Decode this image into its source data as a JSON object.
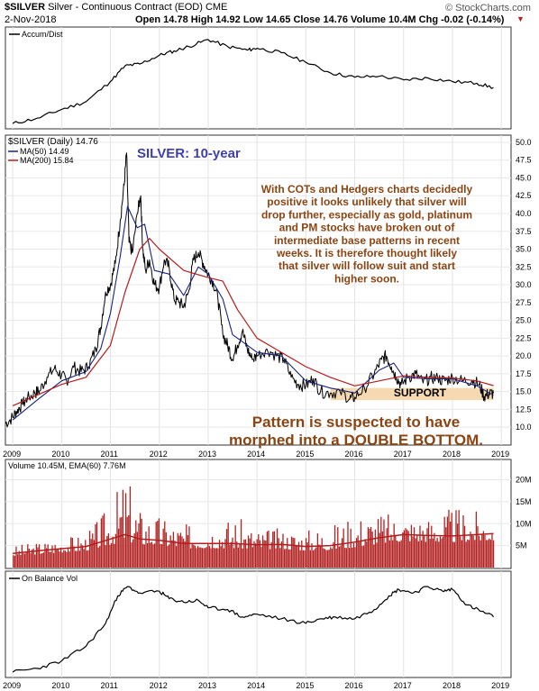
{
  "header": {
    "symbol": "$SILVER",
    "description": "Silver - Continuous Contract (EOD)",
    "exchange": "CME",
    "date": "2-Nov-2018",
    "quote": "Open 14.78  High 14.92  Low 14.65  Close 14.76  Volume 10.4M  Chg -0.02 (-0.14%)",
    "watermark": "© StockCharts.com"
  },
  "colors": {
    "price": "#000000",
    "ma50": "#1a237e",
    "ma200": "#b71c1c",
    "volume": "#b22222",
    "ema": "#b71c1c",
    "support": "#f6d9b0",
    "annotation": "#8b4513",
    "title": "#3f3fb0"
  },
  "chart_data": [
    {
      "type": "line",
      "panel": "Accum/Dist",
      "legend": [
        "Accum/Dist"
      ],
      "x": [
        2009.0,
        2009.5,
        2010.0,
        2010.5,
        2011.0,
        2011.3,
        2011.6,
        2012.0,
        2012.3,
        2012.6,
        2013.0,
        2013.4,
        2013.8,
        2014.0,
        2014.5,
        2015.0,
        2015.5,
        2016.0,
        2016.5,
        2017.0,
        2017.5,
        2018.0,
        2018.5,
        2018.84
      ],
      "y": [
        0.02,
        0.08,
        0.18,
        0.27,
        0.5,
        0.68,
        0.7,
        0.8,
        0.85,
        0.9,
        0.98,
        0.9,
        0.86,
        0.88,
        0.83,
        0.72,
        0.6,
        0.55,
        0.56,
        0.52,
        0.54,
        0.5,
        0.48,
        0.43
      ],
      "ylim": [
        0,
        1
      ]
    },
    {
      "type": "line",
      "panel": "price",
      "title": "SILVER: 10-year",
      "legend": [
        "$SILVER (Daily) 14.76",
        "MA(50) 14.49",
        "MA(200) 15.84"
      ],
      "xlabel": "",
      "ylabel": "",
      "xticks": [
        "2009",
        "2010",
        "2011",
        "2012",
        "2013",
        "2014",
        "2015",
        "2016",
        "2017",
        "2018",
        "2019"
      ],
      "yticks": [
        "10.0",
        "12.5",
        "15.0",
        "17.5",
        "20.0",
        "22.5",
        "25.0",
        "27.5",
        "30.0",
        "32.5",
        "35.0",
        "37.5",
        "40.0",
        "42.5",
        "45.0",
        "47.5",
        "50.0"
      ],
      "ylim": [
        8.5,
        50.5
      ],
      "series": [
        {
          "x": [
            2008.85,
            2009.0,
            2009.1,
            2009.2,
            2009.3,
            2009.45,
            2009.55,
            2009.7,
            2009.85,
            2010.0,
            2010.1,
            2010.25,
            2010.4,
            2010.55,
            2010.7,
            2010.8,
            2010.9,
            2011.0,
            2011.1,
            2011.2,
            2011.28,
            2011.33,
            2011.38,
            2011.45,
            2011.55,
            2011.62,
            2011.66,
            2011.72,
            2011.8,
            2011.9,
            2012.0,
            2012.1,
            2012.2,
            2012.3,
            2012.4,
            2012.5,
            2012.6,
            2012.7,
            2012.8,
            2012.9,
            2013.0,
            2013.1,
            2013.2,
            2013.3,
            2013.4,
            2013.5,
            2013.6,
            2013.7,
            2013.8,
            2013.9,
            2014.0,
            2014.2,
            2014.4,
            2014.55,
            2014.7,
            2014.85,
            2015.0,
            2015.15,
            2015.3,
            2015.5,
            2015.7,
            2015.9,
            2016.0,
            2016.2,
            2016.4,
            2016.55,
            2016.65,
            2016.75,
            2016.85,
            2016.95,
            2017.1,
            2017.25,
            2017.4,
            2017.55,
            2017.7,
            2017.85,
            2018.0,
            2018.2,
            2018.4,
            2018.55,
            2018.65,
            2018.75,
            2018.84
          ],
          "y": [
            10.5,
            11.4,
            12.5,
            13.2,
            14.0,
            14.8,
            15.1,
            17.0,
            18.2,
            17.3,
            16.5,
            18.4,
            17.8,
            18.5,
            21.0,
            24.0,
            29.0,
            30.0,
            33.0,
            39.0,
            44.0,
            48.5,
            36.0,
            34.5,
            40.0,
            42.5,
            35.0,
            32.0,
            33.5,
            30.0,
            29.5,
            33.5,
            32.5,
            28.0,
            27.5,
            27.0,
            29.0,
            33.5,
            34.5,
            33.0,
            31.5,
            30.5,
            28.0,
            23.0,
            21.5,
            19.5,
            21.5,
            23.5,
            21.0,
            19.5,
            20.0,
            21.0,
            20.0,
            19.5,
            17.0,
            16.0,
            15.8,
            16.8,
            15.0,
            14.8,
            15.0,
            14.0,
            14.2,
            15.5,
            17.5,
            19.5,
            20.0,
            18.5,
            17.0,
            16.0,
            17.0,
            17.5,
            16.2,
            17.0,
            16.8,
            16.5,
            17.0,
            16.5,
            16.6,
            16.0,
            14.3,
            14.7,
            14.76
          ]
        },
        {
          "x": [
            2009.0,
            2009.5,
            2010.0,
            2010.5,
            2010.8,
            2011.0,
            2011.2,
            2011.35,
            2011.55,
            2011.7,
            2011.9,
            2012.2,
            2012.5,
            2012.8,
            2013.0,
            2013.3,
            2013.5,
            2013.8,
            2014.0,
            2014.5,
            2015.0,
            2015.5,
            2016.0,
            2016.5,
            2016.8,
            2017.0,
            2017.5,
            2018.0,
            2018.5,
            2018.84
          ],
          "y": [
            11.0,
            13.8,
            16.5,
            17.8,
            21.0,
            26.0,
            34.0,
            41.0,
            38.0,
            38.5,
            32.0,
            31.5,
            28.5,
            32.5,
            31.5,
            28.0,
            23.0,
            21.5,
            20.5,
            20.0,
            16.5,
            15.5,
            14.8,
            18.0,
            19.0,
            17.0,
            16.8,
            16.8,
            15.8,
            14.49
          ]
        },
        {
          "x": [
            2009.0,
            2009.5,
            2010.0,
            2010.5,
            2011.0,
            2011.3,
            2011.6,
            2011.8,
            2012.0,
            2012.5,
            2013.0,
            2013.3,
            2013.6,
            2014.0,
            2014.5,
            2015.0,
            2015.5,
            2016.0,
            2016.5,
            2017.0,
            2017.5,
            2018.0,
            2018.5,
            2018.84
          ],
          "y": [
            13.0,
            14.5,
            16.0,
            17.0,
            21.5,
            29.0,
            35.0,
            36.5,
            35.0,
            32.0,
            31.0,
            30.5,
            26.5,
            22.5,
            20.5,
            18.5,
            17.0,
            15.8,
            16.5,
            17.2,
            17.0,
            16.9,
            16.5,
            15.84
          ]
        }
      ],
      "annotations": {
        "commentary": "With COTs and Hedgers charts decidedly positive it looks unlikely that silver will drop further, especially as gold, platinum and PM stocks have broken out of intermediate base patterns in recent weeks. It is therefore thought likely that silver will follow suit and start higher soon.",
        "support_label": "SUPPORT",
        "pattern_line1": "Pattern is suspected to have",
        "pattern_line2": "morphed into a DOUBLE BOTTOM.",
        "support_range": [
          2015.5,
          2018.84,
          13.8,
          15.5
        ]
      }
    },
    {
      "type": "bar",
      "panel": "volume",
      "legend": [
        "Volume 10.45M, EMA(60) 7.76M"
      ],
      "yticks": [
        "5M",
        "10M",
        "15M",
        "20M"
      ],
      "ylim": [
        0,
        24
      ],
      "x": [
        2009.0,
        2009.5,
        2010.0,
        2010.5,
        2011.0,
        2011.3,
        2011.6,
        2012.0,
        2012.5,
        2013.0,
        2013.5,
        2014.0,
        2014.5,
        2015.0,
        2015.5,
        2016.0,
        2016.5,
        2017.0,
        2017.5,
        2018.0,
        2018.5,
        2018.84
      ],
      "ema": [
        3.2,
        3.8,
        4.3,
        4.8,
        6.5,
        7.5,
        6.5,
        6.2,
        5.5,
        5.5,
        5.5,
        5.2,
        5.3,
        4.8,
        5.0,
        5.8,
        6.8,
        7.5,
        7.3,
        7.2,
        7.5,
        7.76
      ],
      "peak": [
        5.0,
        6.0,
        7.0,
        8.0,
        15.0,
        22.5,
        14.0,
        12.0,
        10.0,
        11.0,
        12.0,
        9.0,
        9.0,
        9.0,
        10.0,
        12.5,
        13.0,
        12.0,
        12.0,
        14.0,
        13.0,
        10.45
      ]
    },
    {
      "type": "line",
      "panel": "On Balance Vol",
      "legend": [
        "On Balance Vol"
      ],
      "xticks": [
        "2009",
        "2010",
        "2011",
        "2012",
        "2013",
        "2014",
        "2015",
        "2016",
        "2017",
        "2018",
        "2019"
      ],
      "x": [
        2009.0,
        2009.5,
        2010.0,
        2010.5,
        2010.9,
        2011.15,
        2011.35,
        2011.6,
        2012.0,
        2012.2,
        2012.5,
        2012.8,
        2013.0,
        2013.4,
        2013.7,
        2014.0,
        2014.5,
        2015.0,
        2015.3,
        2015.6,
        2016.0,
        2016.4,
        2016.7,
        2016.9,
        2017.2,
        2017.5,
        2017.8,
        2018.0,
        2018.3,
        2018.6,
        2018.84
      ],
      "y": [
        0.02,
        0.06,
        0.14,
        0.3,
        0.55,
        0.85,
        0.95,
        0.88,
        0.9,
        0.82,
        0.78,
        0.8,
        0.72,
        0.7,
        0.62,
        0.65,
        0.6,
        0.55,
        0.6,
        0.62,
        0.6,
        0.7,
        0.85,
        0.92,
        0.88,
        0.95,
        0.9,
        0.92,
        0.75,
        0.68,
        0.62
      ],
      "ylim": [
        0,
        1
      ]
    }
  ]
}
